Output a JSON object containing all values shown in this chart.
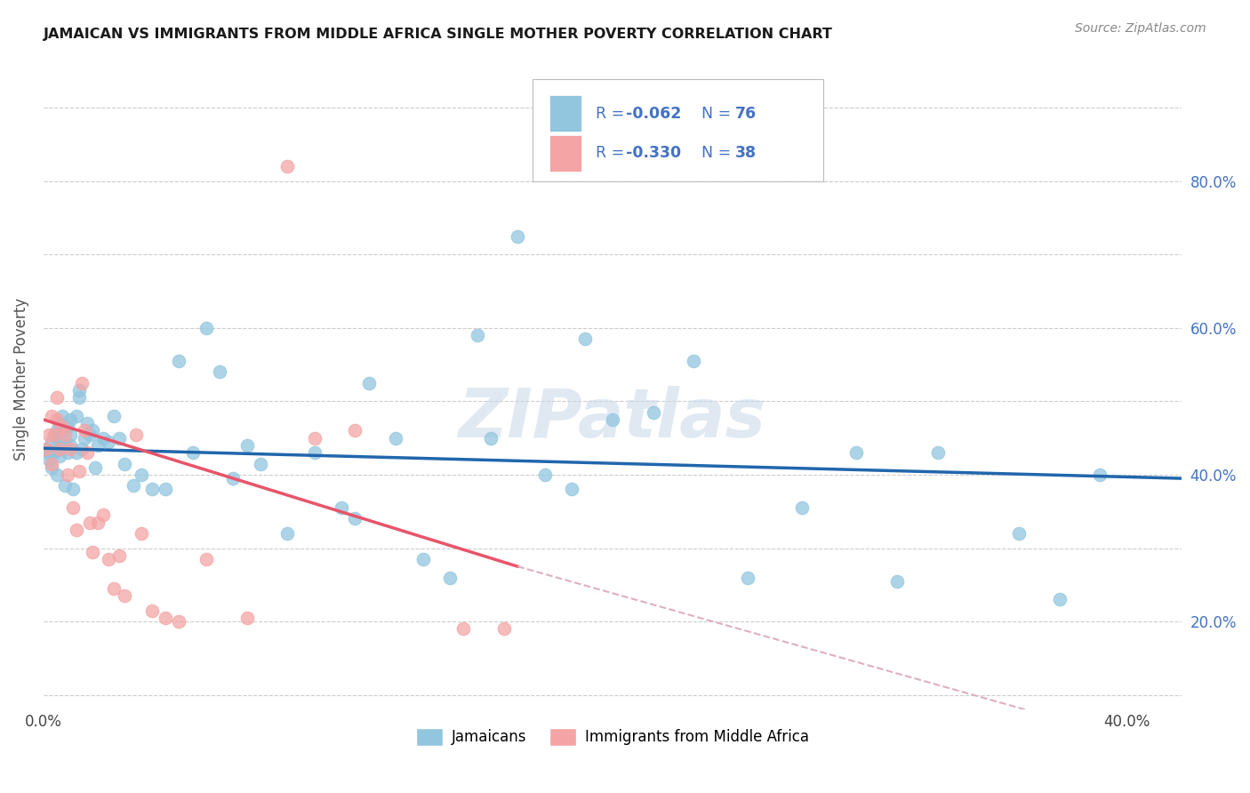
{
  "title": "JAMAICAN VS IMMIGRANTS FROM MIDDLE AFRICA SINGLE MOTHER POVERTY CORRELATION CHART",
  "source": "Source: ZipAtlas.com",
  "ylabel": "Single Mother Poverty",
  "xlim": [
    0.0,
    0.42
  ],
  "ylim": [
    -0.02,
    0.88
  ],
  "x_ticks": [
    0.0,
    0.05,
    0.1,
    0.15,
    0.2,
    0.25,
    0.3,
    0.35,
    0.4
  ],
  "y_ticks": [
    0.0,
    0.1,
    0.2,
    0.3,
    0.4,
    0.5,
    0.6,
    0.7,
    0.8
  ],
  "right_y_labels": [
    "",
    "20.0%",
    "",
    "40.0%",
    "",
    "60.0%",
    "",
    "80.0%",
    ""
  ],
  "blue_color": "#92c5de",
  "pink_color": "#f4a4a4",
  "trendline_blue": "#2166ac",
  "trendline_pink": "#e8546a",
  "trendline_pink_dash": "#deb0bc",
  "watermark": "ZIPatlas",
  "legend_text_color": "#4472c4",
  "jamaicans_x": [
    0.001,
    0.002,
    0.002,
    0.003,
    0.003,
    0.003,
    0.004,
    0.004,
    0.005,
    0.005,
    0.005,
    0.006,
    0.006,
    0.007,
    0.007,
    0.007,
    0.008,
    0.008,
    0.009,
    0.009,
    0.01,
    0.01,
    0.01,
    0.011,
    0.012,
    0.012,
    0.013,
    0.013,
    0.014,
    0.015,
    0.016,
    0.017,
    0.018,
    0.019,
    0.02,
    0.022,
    0.024,
    0.026,
    0.028,
    0.03,
    0.033,
    0.036,
    0.04,
    0.045,
    0.05,
    0.055,
    0.06,
    0.065,
    0.07,
    0.075,
    0.08,
    0.09,
    0.1,
    0.11,
    0.115,
    0.12,
    0.13,
    0.14,
    0.15,
    0.16,
    0.165,
    0.175,
    0.185,
    0.195,
    0.2,
    0.21,
    0.225,
    0.24,
    0.26,
    0.28,
    0.3,
    0.315,
    0.33,
    0.36,
    0.375,
    0.39
  ],
  "jamaicans_y": [
    0.335,
    0.33,
    0.32,
    0.33,
    0.31,
    0.345,
    0.33,
    0.355,
    0.35,
    0.3,
    0.36,
    0.325,
    0.37,
    0.34,
    0.36,
    0.38,
    0.285,
    0.34,
    0.33,
    0.365,
    0.355,
    0.375,
    0.34,
    0.28,
    0.33,
    0.38,
    0.405,
    0.415,
    0.335,
    0.35,
    0.37,
    0.355,
    0.36,
    0.31,
    0.34,
    0.35,
    0.345,
    0.38,
    0.35,
    0.315,
    0.285,
    0.3,
    0.28,
    0.28,
    0.455,
    0.33,
    0.5,
    0.44,
    0.295,
    0.34,
    0.315,
    0.22,
    0.33,
    0.255,
    0.24,
    0.425,
    0.35,
    0.185,
    0.16,
    0.49,
    0.35,
    0.625,
    0.3,
    0.28,
    0.485,
    0.375,
    0.385,
    0.455,
    0.16,
    0.255,
    0.33,
    0.155,
    0.33,
    0.22,
    0.13,
    0.3
  ],
  "africa_x": [
    0.001,
    0.002,
    0.003,
    0.003,
    0.004,
    0.005,
    0.005,
    0.006,
    0.007,
    0.008,
    0.009,
    0.01,
    0.011,
    0.012,
    0.013,
    0.014,
    0.015,
    0.016,
    0.017,
    0.018,
    0.02,
    0.022,
    0.024,
    0.026,
    0.028,
    0.03,
    0.034,
    0.036,
    0.04,
    0.045,
    0.05,
    0.06,
    0.075,
    0.09,
    0.1,
    0.115,
    0.155,
    0.17
  ],
  "africa_y": [
    0.335,
    0.355,
    0.38,
    0.315,
    0.355,
    0.405,
    0.375,
    0.335,
    0.365,
    0.355,
    0.3,
    0.335,
    0.255,
    0.225,
    0.305,
    0.425,
    0.36,
    0.33,
    0.235,
    0.195,
    0.235,
    0.245,
    0.185,
    0.145,
    0.19,
    0.135,
    0.355,
    0.22,
    0.115,
    0.105,
    0.1,
    0.185,
    0.105,
    0.72,
    0.35,
    0.36,
    0.09,
    0.09
  ]
}
